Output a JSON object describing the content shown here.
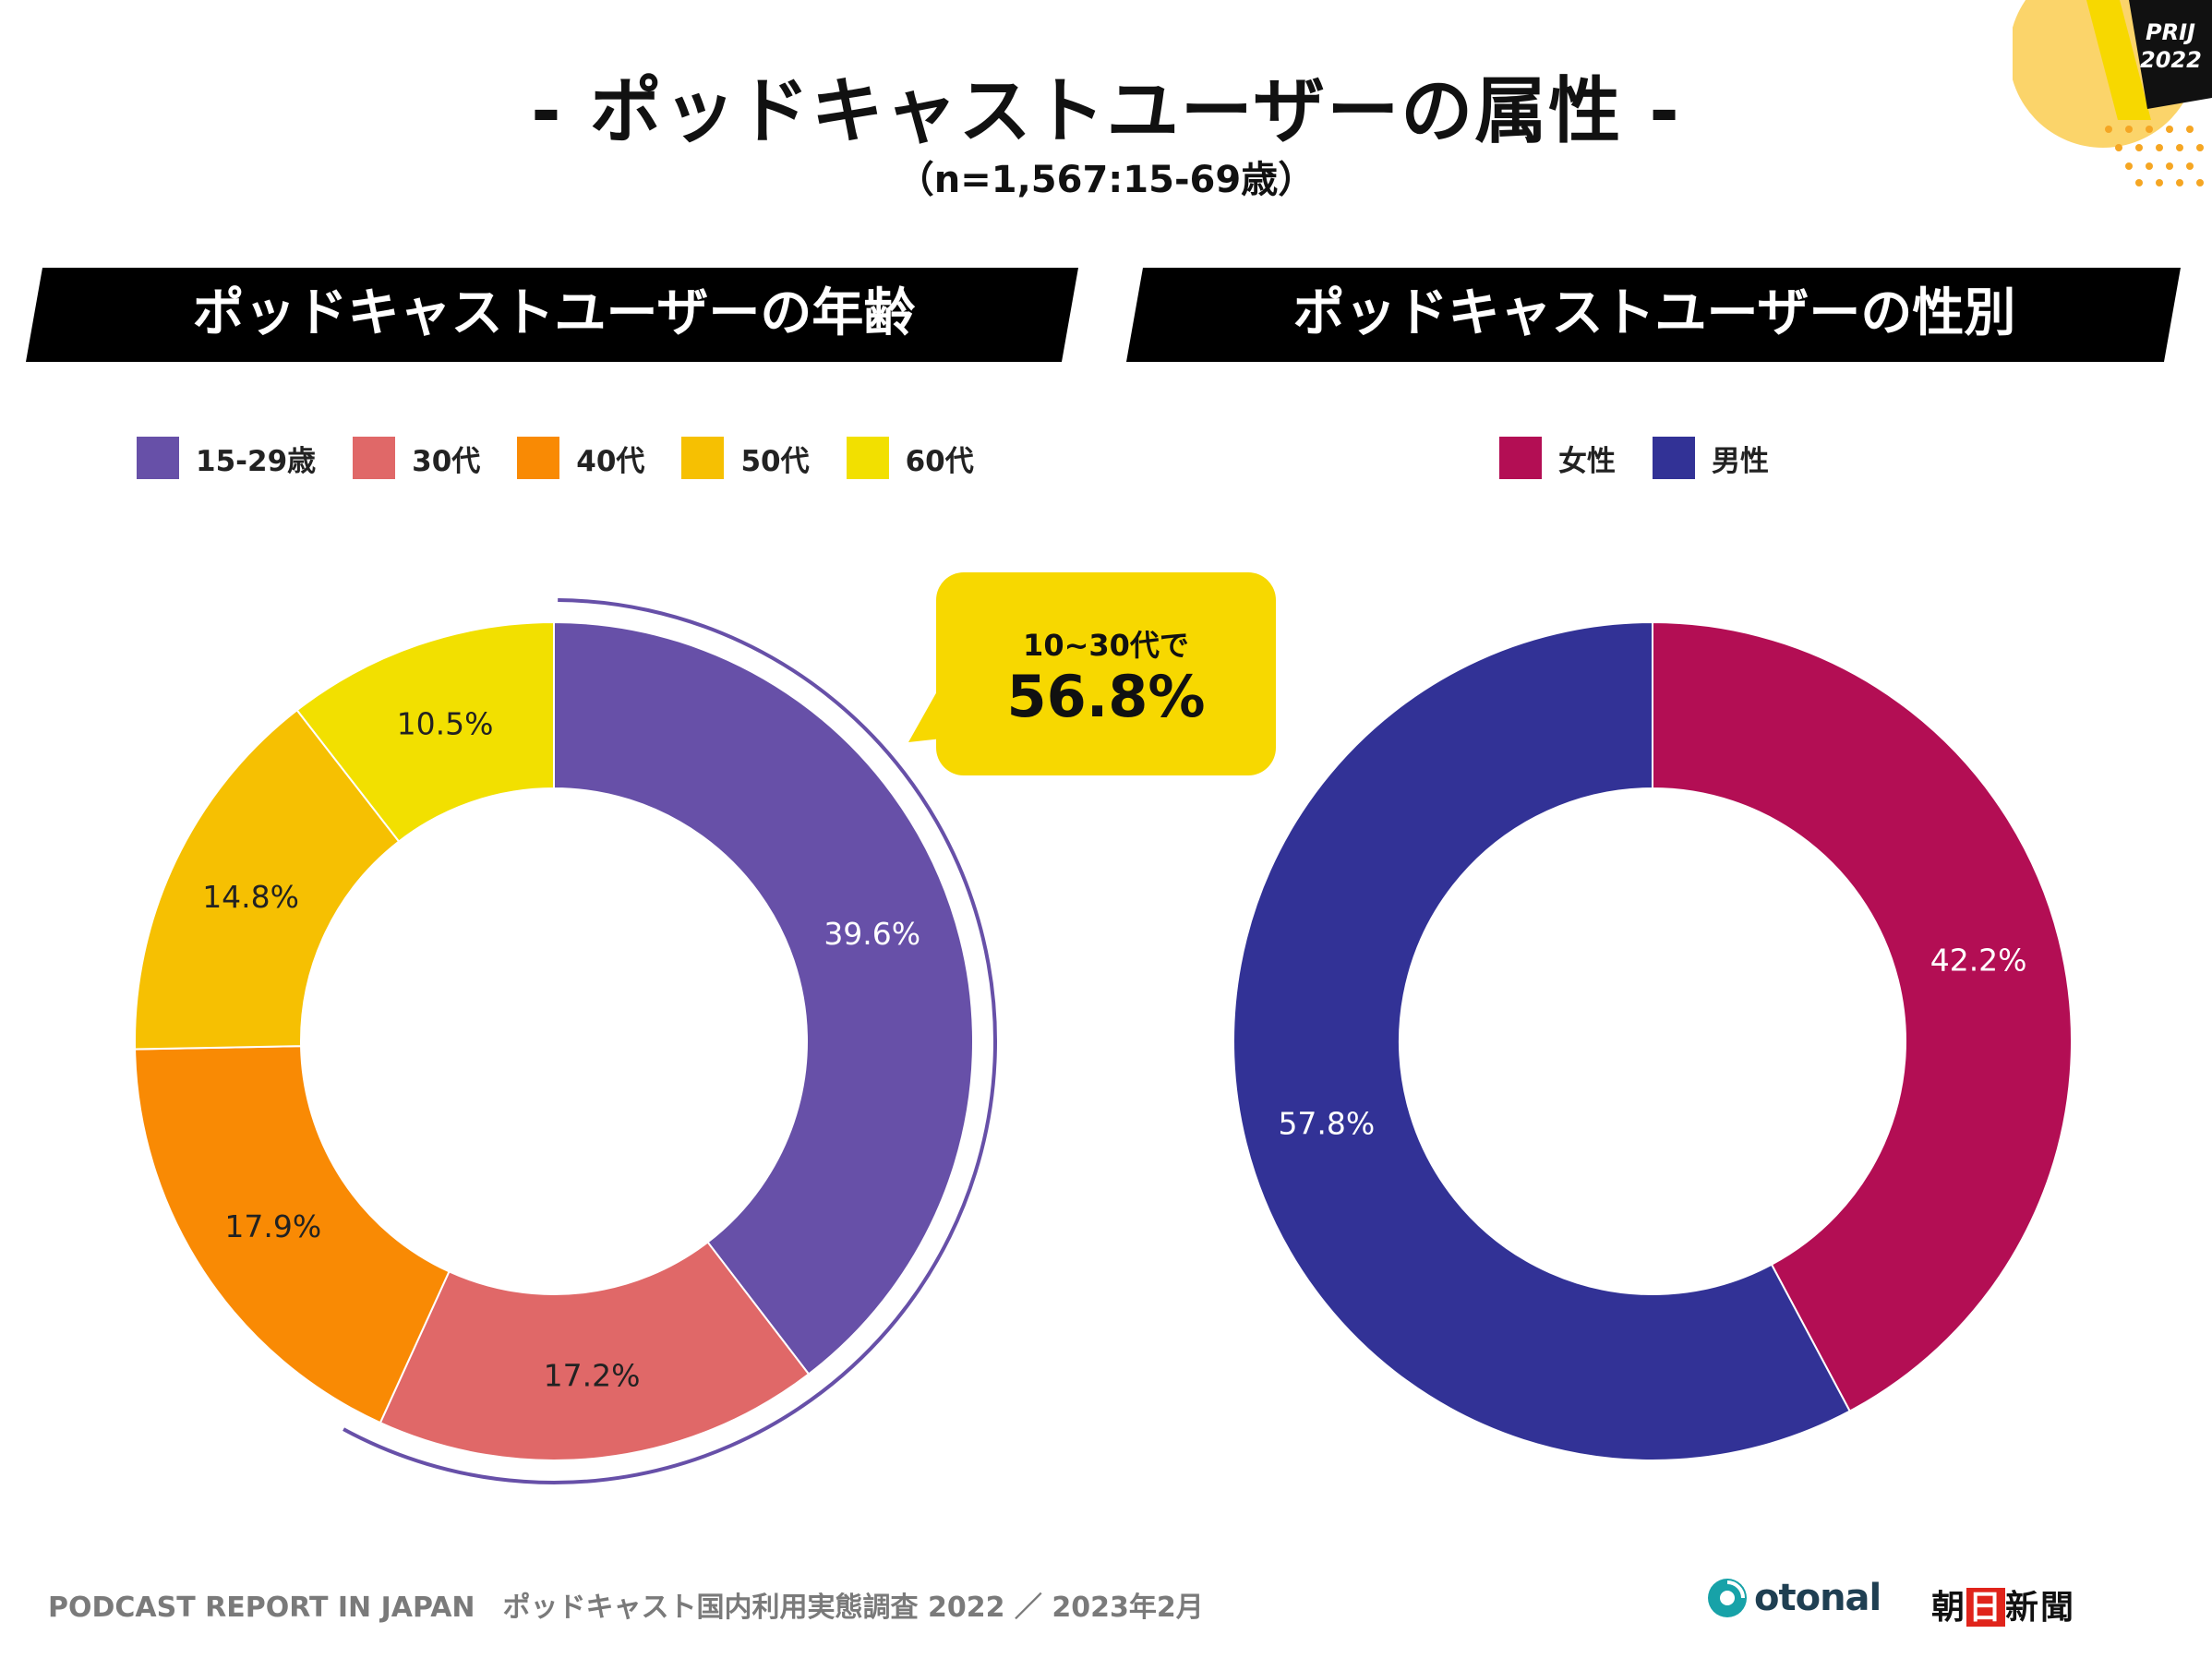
{
  "page": {
    "title": "- ポッドキャストユーザーの属性 -",
    "subtitle": "（n=1,567:15-69歳）"
  },
  "badge": {
    "line1": "PRIJ",
    "line2": "2022"
  },
  "left_panel": {
    "heading": "ポッドキャストユーザーの年齢"
  },
  "right_panel": {
    "heading": "ポッドキャストユーザーの性別"
  },
  "callout": {
    "line1": "10~30代で",
    "line2": "56.8%"
  },
  "footer": {
    "text": "PODCAST REPORT IN JAPAN　ポッドキャスト国内利用実態調査 2022 ／ 2023年2月"
  },
  "logos": {
    "otonal": "otonal",
    "asahi_a": "朝",
    "asahi_b": "日",
    "asahi_c": "新聞"
  },
  "colors": {
    "age_15_29": "#6750a8",
    "age_30s": "#e06868",
    "age_40s": "#f98a04",
    "age_50s": "#f6c002",
    "age_60s": "#f2e000",
    "female": "#b30e54",
    "male": "#323296",
    "banner": "#000000",
    "callout": "#f7d800",
    "bracket": "#6750a8"
  },
  "chart_data": [
    {
      "type": "pie",
      "variant": "donut",
      "title": "ポッドキャストユーザーの年齢",
      "categories": [
        "15-29歳",
        "30代",
        "40代",
        "50代",
        "60代"
      ],
      "values": [
        39.6,
        17.2,
        17.9,
        14.8,
        10.5
      ],
      "labels": [
        "39.6%",
        "17.2%",
        "17.9%",
        "14.8%",
        "10.5%"
      ],
      "colors": [
        "#6750a8",
        "#e06868",
        "#f98a04",
        "#f6c002",
        "#f2e000"
      ],
      "legend": "top"
    },
    {
      "type": "pie",
      "variant": "donut",
      "title": "ポッドキャストユーザーの性別",
      "categories": [
        "女性",
        "男性"
      ],
      "values": [
        42.2,
        57.8
      ],
      "labels": [
        "42.2%",
        "57.8%"
      ],
      "colors": [
        "#b30e54",
        "#323296"
      ],
      "legend": "top"
    }
  ]
}
